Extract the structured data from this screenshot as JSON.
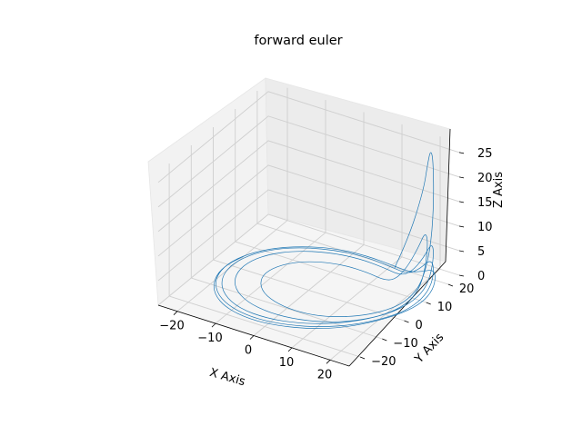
{
  "chart_data": {
    "type": "line",
    "projection": "3d",
    "title": "forward euler",
    "xlabel": "X Axis",
    "ylabel": "Y Axis",
    "zlabel": "Z Axis",
    "x_ticks": [
      "−20",
      "−10",
      "0",
      "10",
      "20"
    ],
    "y_ticks": [
      "−20",
      "−10",
      "0",
      "10",
      "20"
    ],
    "z_ticks": [
      "0",
      "5",
      "10",
      "15",
      "20",
      "25"
    ],
    "xlim": [
      -25,
      25
    ],
    "ylim": [
      -25,
      25
    ],
    "zlim": [
      0,
      27
    ],
    "grid": true,
    "series": [
      {
        "color": "#1f77b4",
        "points": [
          [
            15.0,
            13.0,
            3.5
          ],
          [
            17.0,
            16.0,
            9.0
          ],
          [
            18.5,
            20.0,
            17.5
          ],
          [
            19.0,
            21.0,
            22.5
          ],
          [
            19.5,
            21.5,
            25.5
          ],
          [
            20.5,
            21.0,
            24.0
          ],
          [
            21.5,
            19.5,
            15.0
          ],
          [
            22.0,
            17.0,
            7.0
          ],
          [
            22.0,
            13.0,
            2.0
          ],
          [
            21.5,
            8.0,
            0.5
          ],
          [
            20.0,
            3.0,
            0.1
          ],
          [
            17.0,
            -2.0,
            0.0
          ],
          [
            13.0,
            -6.0,
            0.0
          ],
          [
            8.0,
            -9.0,
            0.0
          ],
          [
            2.0,
            -10.0,
            0.0
          ],
          [
            -4.0,
            -9.0,
            0.0
          ],
          [
            -9.0,
            -6.0,
            0.0
          ],
          [
            -12.0,
            -1.0,
            0.0
          ],
          [
            -12.0,
            4.0,
            0.0
          ],
          [
            -9.5,
            9.0,
            0.0
          ],
          [
            -5.0,
            12.5,
            0.0
          ],
          [
            1.0,
            14.5,
            0.0
          ],
          [
            7.0,
            14.5,
            0.0
          ],
          [
            12.0,
            13.0,
            0.3
          ],
          [
            15.5,
            12.0,
            1.5
          ],
          [
            18.0,
            13.0,
            4.0
          ],
          [
            20.0,
            15.0,
            8.0
          ],
          [
            21.0,
            16.5,
            11.0
          ],
          [
            22.0,
            16.0,
            9.5
          ],
          [
            22.5,
            14.0,
            5.0
          ],
          [
            22.5,
            11.0,
            1.5
          ],
          [
            22.0,
            6.0,
            0.3
          ],
          [
            20.0,
            0.0,
            0.0
          ],
          [
            16.5,
            -5.5,
            0.0
          ],
          [
            11.5,
            -10.0,
            0.0
          ],
          [
            5.0,
            -13.0,
            0.0
          ],
          [
            -2.0,
            -14.0,
            0.0
          ],
          [
            -9.0,
            -12.5,
            0.0
          ],
          [
            -14.5,
            -8.5,
            0.0
          ],
          [
            -17.5,
            -3.0,
            0.0
          ],
          [
            -18.0,
            3.0,
            0.0
          ],
          [
            -16.0,
            9.0,
            0.0
          ],
          [
            -11.5,
            14.0,
            0.0
          ],
          [
            -5.0,
            17.5,
            0.0
          ],
          [
            2.0,
            19.0,
            0.0
          ],
          [
            9.0,
            18.5,
            0.0
          ],
          [
            14.5,
            16.5,
            0.5
          ],
          [
            18.0,
            15.5,
            2.5
          ],
          [
            20.5,
            16.5,
            5.5
          ],
          [
            22.0,
            17.5,
            8.5
          ],
          [
            23.0,
            17.0,
            7.5
          ],
          [
            23.5,
            15.0,
            4.0
          ],
          [
            23.5,
            12.0,
            1.5
          ],
          [
            22.5,
            7.0,
            0.3
          ],
          [
            20.5,
            1.0,
            0.0
          ],
          [
            17.0,
            -5.0,
            0.0
          ],
          [
            12.0,
            -10.5,
            0.0
          ],
          [
            5.5,
            -14.5,
            0.0
          ],
          [
            -1.5,
            -16.5,
            0.0
          ],
          [
            -9.0,
            -16.0,
            0.0
          ],
          [
            -15.0,
            -12.5,
            0.0
          ],
          [
            -19.0,
            -7.0,
            0.0
          ],
          [
            -20.5,
            -0.5,
            0.0
          ],
          [
            -19.5,
            6.0,
            0.0
          ],
          [
            -16.0,
            12.0,
            0.0
          ],
          [
            -10.5,
            16.5,
            0.0
          ],
          [
            -3.5,
            19.5,
            0.0
          ],
          [
            4.0,
            20.5,
            0.0
          ],
          [
            11.0,
            19.5,
            0.0
          ],
          [
            16.0,
            17.5,
            0.8
          ],
          [
            19.5,
            17.0,
            3.0
          ],
          [
            21.5,
            17.5,
            5.0
          ],
          [
            23.0,
            17.0,
            4.5
          ],
          [
            24.0,
            14.5,
            2.0
          ],
          [
            24.0,
            10.0,
            0.5
          ],
          [
            23.0,
            4.0,
            0.0
          ],
          [
            20.5,
            -2.0,
            0.0
          ],
          [
            16.5,
            -8.0,
            0.0
          ],
          [
            11.0,
            -13.0,
            0.0
          ],
          [
            4.0,
            -16.5,
            0.0
          ],
          [
            -3.0,
            -18.0,
            0.0
          ],
          [
            -10.0,
            -17.0,
            0.0
          ],
          [
            -16.0,
            -13.5,
            0.0
          ],
          [
            -20.0,
            -8.0,
            0.0
          ],
          [
            -21.5,
            -1.5,
            0.0
          ],
          [
            -20.5,
            5.0,
            0.0
          ],
          [
            -17.0,
            11.5,
            0.0
          ],
          [
            -11.5,
            16.5,
            0.0
          ],
          [
            -4.5,
            20.0,
            0.0
          ],
          [
            3.0,
            21.0,
            0.0
          ],
          [
            10.0,
            20.5,
            0.0
          ],
          [
            15.5,
            19.0,
            0.5
          ],
          [
            19.5,
            18.0,
            2.0
          ],
          [
            22.0,
            18.0,
            3.0
          ],
          [
            23.5,
            17.0,
            2.5
          ],
          [
            24.5,
            14.0,
            1.0
          ],
          [
            24.5,
            9.0,
            0.2
          ],
          [
            23.0,
            3.0,
            0.0
          ],
          [
            20.0,
            -3.5,
            0.0
          ],
          [
            15.5,
            -10.0,
            0.0
          ],
          [
            9.5,
            -15.0,
            0.0
          ],
          [
            2.5,
            -18.0,
            0.0
          ],
          [
            -4.5,
            -19.0,
            0.0
          ],
          [
            -11.5,
            -17.5,
            0.0
          ],
          [
            -17.0,
            -13.5,
            0.0
          ],
          [
            -20.5,
            -7.5,
            0.0
          ],
          [
            -21.5,
            -1.0,
            0.0
          ],
          [
            -20.0,
            5.5,
            0.0
          ]
        ]
      }
    ]
  }
}
